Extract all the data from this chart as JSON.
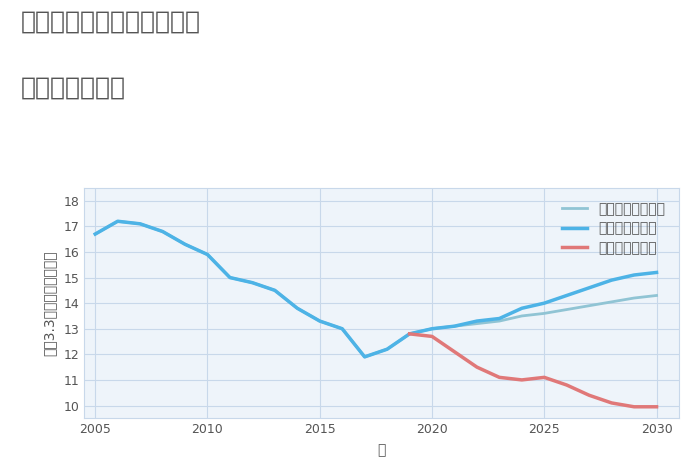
{
  "title_line1": "兵庫県豊岡市日高町名色の",
  "title_line2": "土地の価格推移",
  "xlabel": "年",
  "ylabel": "坪（3.3㎡）単価（万円）",
  "ylim": [
    9.5,
    18.5
  ],
  "xlim": [
    2004.5,
    2031
  ],
  "yticks": [
    10,
    11,
    12,
    13,
    14,
    15,
    16,
    17,
    18
  ],
  "xticks": [
    2005,
    2010,
    2015,
    2020,
    2025,
    2030
  ],
  "background_color": "#eef4fa",
  "grid_color": "#c8d8ea",
  "good_scenario": {
    "label": "グッドシナリオ",
    "color": "#4db3e6",
    "linewidth": 2.5,
    "x": [
      2005,
      2006,
      2007,
      2008,
      2009,
      2010,
      2011,
      2012,
      2013,
      2014,
      2015,
      2016,
      2017,
      2018,
      2019,
      2020,
      2021,
      2022,
      2023,
      2024,
      2025,
      2026,
      2027,
      2028,
      2029,
      2030
    ],
    "y": [
      16.7,
      17.2,
      17.1,
      16.8,
      16.3,
      15.9,
      15.0,
      14.8,
      14.5,
      13.8,
      13.3,
      13.0,
      11.9,
      12.2,
      12.8,
      13.0,
      13.1,
      13.3,
      13.4,
      13.8,
      14.0,
      14.3,
      14.6,
      14.9,
      15.1,
      15.2
    ]
  },
  "bad_scenario": {
    "label": "バッドシナリオ",
    "color": "#e07878",
    "linewidth": 2.5,
    "x": [
      2019,
      2020,
      2021,
      2022,
      2023,
      2024,
      2025,
      2026,
      2027,
      2028,
      2029,
      2030
    ],
    "y": [
      12.8,
      12.7,
      12.1,
      11.5,
      11.1,
      11.0,
      11.1,
      10.8,
      10.4,
      10.1,
      9.95,
      9.95
    ]
  },
  "normal_scenario": {
    "label": "ノーマルシナリオ",
    "color": "#90c4d4",
    "linewidth": 2.0,
    "x": [
      2005,
      2006,
      2007,
      2008,
      2009,
      2010,
      2011,
      2012,
      2013,
      2014,
      2015,
      2016,
      2017,
      2018,
      2019,
      2020,
      2021,
      2022,
      2023,
      2024,
      2025,
      2026,
      2027,
      2028,
      2029,
      2030
    ],
    "y": [
      16.7,
      17.2,
      17.1,
      16.8,
      16.3,
      15.9,
      15.0,
      14.8,
      14.5,
      13.8,
      13.3,
      13.0,
      11.9,
      12.2,
      12.8,
      13.0,
      13.1,
      13.2,
      13.3,
      13.5,
      13.6,
      13.75,
      13.9,
      14.05,
      14.2,
      14.3
    ]
  },
  "title_color": "#555555",
  "title_fontsize": 18,
  "legend_fontsize": 10,
  "axis_fontsize": 10,
  "tick_fontsize": 9
}
